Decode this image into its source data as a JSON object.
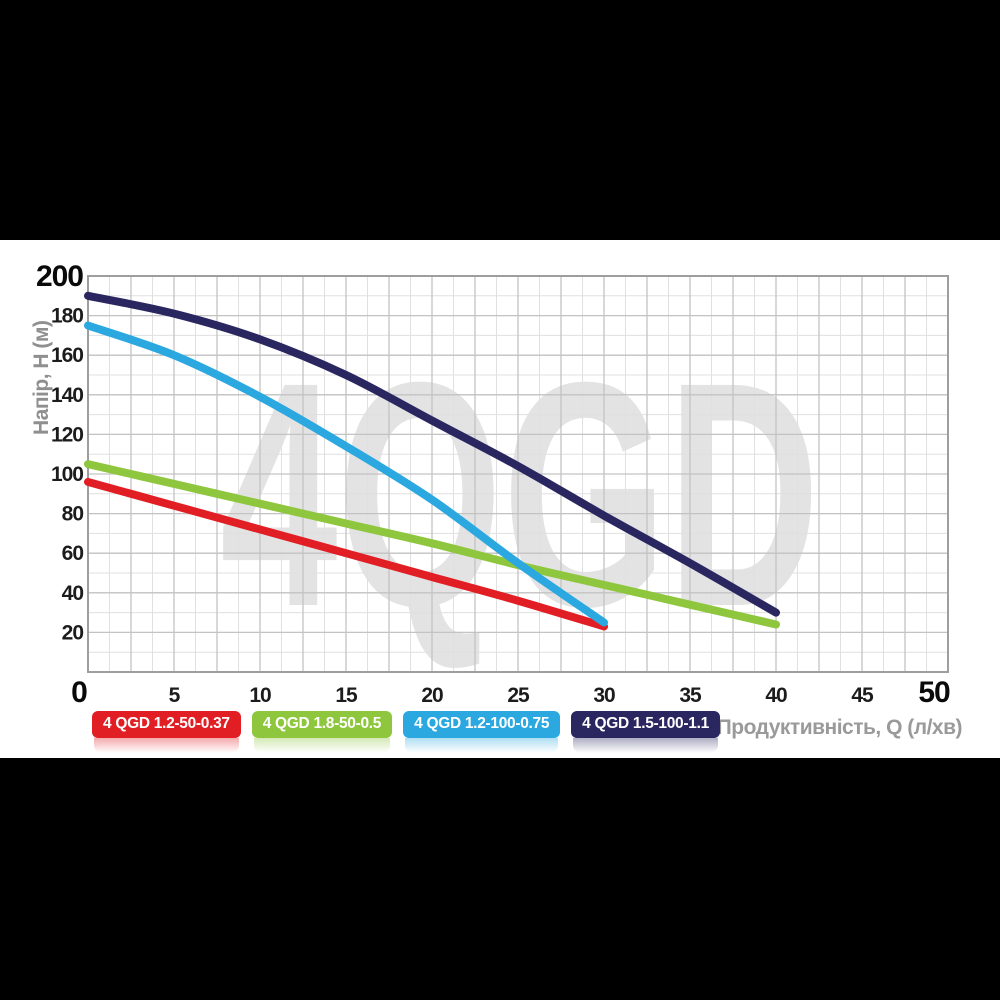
{
  "page": {
    "background": "#000000",
    "panel_background": "#ffffff"
  },
  "watermark": "4QGD",
  "axes": {
    "y_title": "Напір, H (м)",
    "x_title": "Продуктивність, Q (л/хв)",
    "title_color": "#9a9a9a"
  },
  "legend": {
    "items": [
      {
        "label": "4 QGD 1.2-50-0.37",
        "color": "#e21e25"
      },
      {
        "label": "4 QGD 1.8-50-0.5",
        "color": "#8ec73e"
      },
      {
        "label": "4 QGD 1.2-100-0.75",
        "color": "#2ba8e0"
      },
      {
        "label": "4 QGD 1.5-100-1.1",
        "color": "#2a2660"
      }
    ]
  },
  "chart_data": {
    "type": "line",
    "title": "",
    "xlabel": "Продуктивність, Q (л/хв)",
    "ylabel": "Напір, H (м)",
    "xlim": [
      0,
      50
    ],
    "ylim": [
      0,
      200
    ],
    "x_ticks": [
      0,
      5,
      10,
      15,
      20,
      25,
      30,
      35,
      40,
      45,
      50
    ],
    "y_ticks": [
      20,
      40,
      60,
      80,
      100,
      120,
      140,
      160,
      180,
      200
    ],
    "emphasized_ticks": {
      "x": [
        0,
        50
      ],
      "y": [
        200
      ]
    },
    "grid": {
      "on": true,
      "x_minor_step": 1.25,
      "x_major_step": 2.5,
      "y_minor_step": 10,
      "y_major_step": 20
    },
    "legend_position": "bottom",
    "watermark_text": "4QGD",
    "series": [
      {
        "name": "4 QGD 1.2-50-0.37",
        "color": "#e21e25",
        "points": [
          [
            0,
            96
          ],
          [
            5,
            84
          ],
          [
            10,
            72
          ],
          [
            15,
            60
          ],
          [
            20,
            48
          ],
          [
            25,
            36
          ],
          [
            30,
            23
          ]
        ]
      },
      {
        "name": "4 QGD 1.8-50-0.5",
        "color": "#8ec73e",
        "points": [
          [
            0,
            105
          ],
          [
            5,
            95
          ],
          [
            10,
            85
          ],
          [
            15,
            75
          ],
          [
            20,
            65
          ],
          [
            25,
            54
          ],
          [
            30,
            44
          ],
          [
            35,
            34
          ],
          [
            40,
            24
          ]
        ]
      },
      {
        "name": "4 QGD 1.2-100-0.75",
        "color": "#2ba8e0",
        "points": [
          [
            0,
            175
          ],
          [
            5,
            160
          ],
          [
            10,
            139
          ],
          [
            15,
            114
          ],
          [
            20,
            87
          ],
          [
            25,
            55
          ],
          [
            30,
            25
          ]
        ]
      },
      {
        "name": "4 QGD 1.5-100-1.1",
        "color": "#2a2660",
        "points": [
          [
            0,
            190
          ],
          [
            5,
            181
          ],
          [
            10,
            168
          ],
          [
            15,
            150
          ],
          [
            20,
            127
          ],
          [
            25,
            104
          ],
          [
            30,
            79
          ],
          [
            35,
            55
          ],
          [
            40,
            30
          ]
        ]
      }
    ],
    "colors": {
      "grid_minor": "#e0e0e0",
      "grid_major": "#c3c3c3",
      "frame": "#9e9e9e",
      "tick_label": "#1c1c1c",
      "watermark": "#e3e3e3"
    }
  }
}
